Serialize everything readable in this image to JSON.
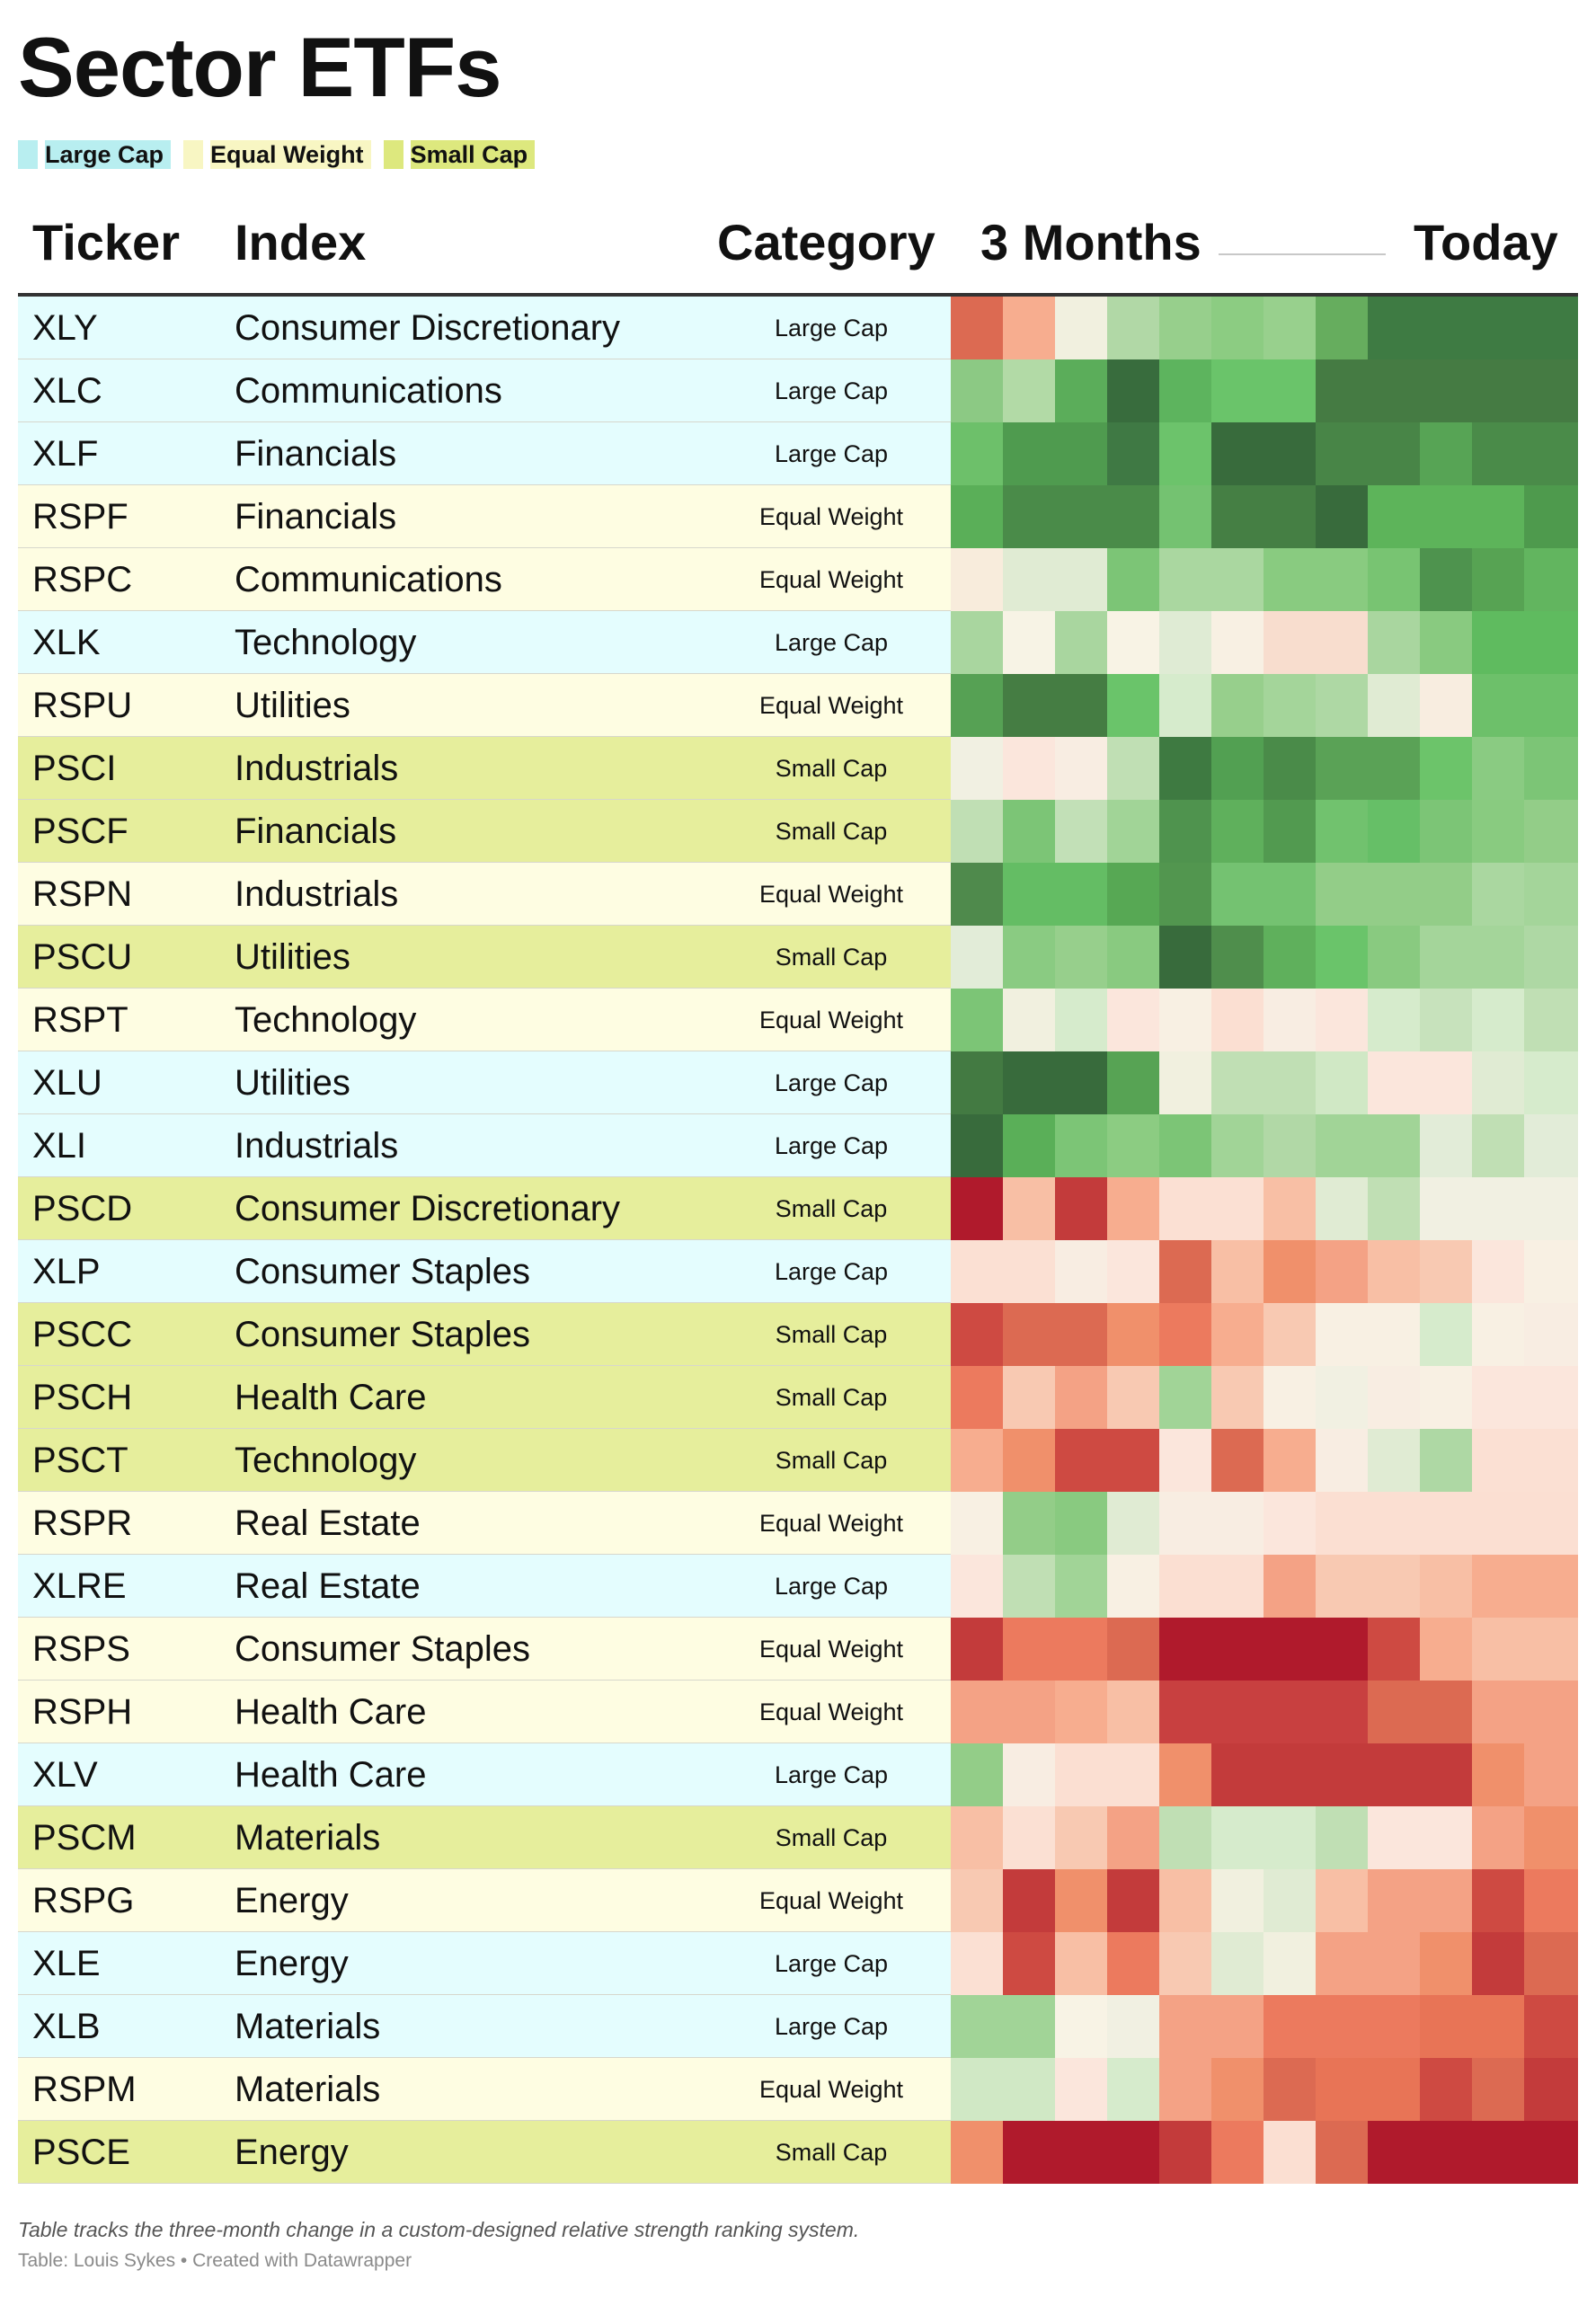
{
  "title": "Sector ETFs",
  "legend": [
    {
      "label": "Large Cap",
      "color": "#b8eef0"
    },
    {
      "label": "Equal Weight",
      "color": "#f8f6c3"
    },
    {
      "label": "Small Cap",
      "color": "#dde87e"
    }
  ],
  "headers": {
    "ticker": "Ticker",
    "index": "Index",
    "category": "Category",
    "period_start": "3 Months",
    "period_end": "Today"
  },
  "category_colors": {
    "Large Cap": "#e4fdfe",
    "Equal Weight": "#fefde2",
    "Small Cap": "#e6ee9c"
  },
  "note": "Table tracks the three-month change in a custom-designed relative strength ranking system.",
  "credit": "Table: Louis Sykes • Created with Datawrapper",
  "chart_data": {
    "type": "heatmap",
    "title": "Sector ETFs",
    "columns": [
      "Ticker",
      "Index",
      "Category",
      "3 Months",
      "Today"
    ],
    "color_scale": "red (weak) to green (strong)",
    "rows": [
      {
        "ticker": "XLY",
        "index": "Consumer Discretionary",
        "category": "Large Cap",
        "values": [
          "#dc6a52",
          "#f7ad8f",
          "#f1f0df",
          "#b1d8a6",
          "#97cf8c",
          "#8ccc82",
          "#98d08d",
          "#66ad5e",
          "#3e7b43",
          "#3e7b43",
          "#3e7b43",
          "#3e7b43"
        ]
      },
      {
        "ticker": "XLC",
        "index": "Communications",
        "category": "Large Cap",
        "values": [
          "#8cc984",
          "#b2daa6",
          "#5bad5a",
          "#386c3d",
          "#5db45e",
          "#6ac46a",
          "#6ac46a",
          "#457b43",
          "#457b43",
          "#457b43",
          "#457b43",
          "#457b43"
        ]
      },
      {
        "ticker": "XLF",
        "index": "Financials",
        "category": "Large Cap",
        "values": [
          "#6dc06a",
          "#4f9b4f",
          "#4f9b4f",
          "#3f7944",
          "#6cc36b",
          "#386b3c",
          "#386b3c",
          "#488547",
          "#488547",
          "#57a455",
          "#4a8b49",
          "#4a8b49"
        ]
      },
      {
        "ticker": "RSPF",
        "index": "Financials",
        "category": "Equal Weight",
        "values": [
          "#5aaf58",
          "#4a8b49",
          "#4a8b49",
          "#4a8b49",
          "#74c271",
          "#457f44",
          "#457f44",
          "#386b3c",
          "#5db45a",
          "#5db45a",
          "#5db45a",
          "#4e9a4d"
        ]
      },
      {
        "ticker": "RSPC",
        "index": "Communications",
        "category": "Equal Weight",
        "values": [
          "#f8ecdc",
          "#e0ebd3",
          "#e0ebd3",
          "#7cc576",
          "#aad7a0",
          "#aad7a0",
          "#89cb80",
          "#89cb80",
          "#78c472",
          "#4e934e",
          "#57a353",
          "#62b55f"
        ]
      },
      {
        "ticker": "XLK",
        "index": "Technology",
        "category": "Large Cap",
        "values": [
          "#a9d69f",
          "#f7f3e5",
          "#a9d69f",
          "#f8f3e5",
          "#dfebd4",
          "#f8f0e3",
          "#f8ddce",
          "#f8ddce",
          "#a9d69f",
          "#89ca80",
          "#5fbb5f",
          "#5fbb5f"
        ]
      },
      {
        "ticker": "RSPU",
        "index": "Utilities",
        "category": "Equal Weight",
        "values": [
          "#56a154",
          "#457d43",
          "#457d43",
          "#6ac46a",
          "#d6ebcc",
          "#97cf8c",
          "#a4d59a",
          "#aed8a4",
          "#e0ebd3",
          "#f8ede0",
          "#6dc06a",
          "#6dc06a"
        ]
      },
      {
        "ticker": "PSCI",
        "index": "Industrials",
        "category": "Small Cap",
        "values": [
          "#f1f0e2",
          "#fbe6dc",
          "#f8ede2",
          "#c0dfb4",
          "#3e7a41",
          "#52a052",
          "#4a8b49",
          "#5aa256",
          "#5aa256",
          "#6cc46a",
          "#8acb82",
          "#7cc576"
        ]
      },
      {
        "ticker": "PSCF",
        "index": "Financials",
        "category": "Small Cap",
        "values": [
          "#c0dfb4",
          "#7cc576",
          "#c2e0b7",
          "#a1d497",
          "#4f934e",
          "#5fb05c",
          "#529a50",
          "#71c26e",
          "#66bf67",
          "#7cc576",
          "#89cb80",
          "#93cd88"
        ]
      },
      {
        "ticker": "RSPN",
        "index": "Industrials",
        "category": "Equal Weight",
        "values": [
          "#4f8a4c",
          "#64bd64",
          "#64bd64",
          "#57a854",
          "#52964f",
          "#74c271",
          "#74c271",
          "#93cd88",
          "#93cd88",
          "#93cd88",
          "#aad7a0",
          "#a4d59a"
        ]
      },
      {
        "ticker": "PSCU",
        "index": "Utilities",
        "category": "Small Cap",
        "values": [
          "#e2ecd8",
          "#8acb82",
          "#97cf8c",
          "#89ca80",
          "#386b3c",
          "#4f8e4c",
          "#5fb05c",
          "#6ac46a",
          "#89ca80",
          "#a4d59a",
          "#a4d59a",
          "#aed8a4"
        ]
      },
      {
        "ticker": "RSPT",
        "index": "Technology",
        "category": "Equal Weight",
        "values": [
          "#7cc576",
          "#f1f0df",
          "#d6ebcc",
          "#fbe6dc",
          "#f8f0e3",
          "#fbdfd2",
          "#f8ede2",
          "#fbe6dc",
          "#d6ebcc",
          "#c7e2bc",
          "#d6ebcc",
          "#c0dfb4"
        ]
      },
      {
        "ticker": "XLU",
        "index": "Utilities",
        "category": "Large Cap",
        "values": [
          "#437a42",
          "#386b3c",
          "#386b3c",
          "#57a354",
          "#f1f0df",
          "#c0dfb4",
          "#c0dfb4",
          "#d0e8c5",
          "#fbe6dc",
          "#fbe6dc",
          "#e0ebd3",
          "#d6ebcc"
        ]
      },
      {
        "ticker": "XLI",
        "index": "Industrials",
        "category": "Large Cap",
        "values": [
          "#386b3c",
          "#5aaf58",
          "#7cc576",
          "#8ccc82",
          "#7cc576",
          "#a1d497",
          "#b1d8a6",
          "#a1d497",
          "#a1d497",
          "#e2ecd8",
          "#c0dfb4",
          "#e2ecd8"
        ]
      },
      {
        "ticker": "PSCD",
        "index": "Consumer Discretionary",
        "category": "Small Cap",
        "values": [
          "#b01a2c",
          "#f8bfa5",
          "#c33b3b",
          "#f7ad8f",
          "#fbe0d3",
          "#fbe0d3",
          "#f8bfa5",
          "#e0ebd3",
          "#c0dfb4",
          "#f1f0e2",
          "#f1f0e2",
          "#f1f0e2"
        ]
      },
      {
        "ticker": "XLP",
        "index": "Consumer Staples",
        "category": "Large Cap",
        "values": [
          "#fbe0d3",
          "#fbe0d3",
          "#f8ede2",
          "#fbe6dc",
          "#dc6a52",
          "#f8bfa5",
          "#f0906b",
          "#f4a285",
          "#f8bfa5",
          "#f8c9b2",
          "#fbe6dc",
          "#f8f0e3"
        ]
      },
      {
        "ticker": "PSCC",
        "index": "Consumer Staples",
        "category": "Small Cap",
        "values": [
          "#ce4a42",
          "#dc6a52",
          "#dc6a52",
          "#f0906b",
          "#ec7a5e",
          "#f7ad8f",
          "#f8c9b2",
          "#f8f0e3",
          "#f8f0e3",
          "#d6ebcc",
          "#f8f0e3",
          "#f8ede2"
        ]
      },
      {
        "ticker": "PSCH",
        "index": "Health Care",
        "category": "Small Cap",
        "values": [
          "#ec7a5e",
          "#f8c9b2",
          "#f4a285",
          "#f8c9b2",
          "#a1d497",
          "#f8c9b2",
          "#f8f0e3",
          "#f1f0e2",
          "#f8ede2",
          "#f8f0e3",
          "#fbe6dc",
          "#fbe6dc"
        ]
      },
      {
        "ticker": "PSCT",
        "index": "Technology",
        "category": "Small Cap",
        "values": [
          "#f7ad8f",
          "#f0906b",
          "#ce4a42",
          "#ce4a42",
          "#fbe6dc",
          "#dc6a52",
          "#f7ad8f",
          "#f8ede2",
          "#e0ebd3",
          "#aed8a4",
          "#fbe0d3",
          "#fbe0d3"
        ]
      },
      {
        "ticker": "RSPR",
        "index": "Real Estate",
        "category": "Equal Weight",
        "values": [
          "#f8f0e3",
          "#93cd88",
          "#89ca80",
          "#e0ebd3",
          "#f8ede2",
          "#f8ede2",
          "#fbe6dc",
          "#fbdfd2",
          "#fbdfd2",
          "#fbdfd2",
          "#fbdfd2",
          "#fbdfd2"
        ]
      },
      {
        "ticker": "XLRE",
        "index": "Real Estate",
        "category": "Large Cap",
        "values": [
          "#fbe6dc",
          "#c0dfb4",
          "#a1d497",
          "#f8f0e3",
          "#fbdfd2",
          "#fbdfd2",
          "#f4a285",
          "#f8c9b2",
          "#f8c9b2",
          "#f8bfa5",
          "#f7ad8f",
          "#f7ad8f"
        ]
      },
      {
        "ticker": "RSPS",
        "index": "Consumer Staples",
        "category": "Equal Weight",
        "values": [
          "#c33b3b",
          "#ec7a5e",
          "#ec7a5e",
          "#dc6a52",
          "#b01a2c",
          "#b01a2c",
          "#b01a2c",
          "#b01a2c",
          "#ce4a42",
          "#f7ad8f",
          "#f8bfa5",
          "#f8bfa5"
        ]
      },
      {
        "ticker": "RSPH",
        "index": "Health Care",
        "category": "Equal Weight",
        "values": [
          "#f4a285",
          "#f4a285",
          "#f7ad8f",
          "#f8bfa5",
          "#c84040",
          "#c84040",
          "#c84040",
          "#c84040",
          "#dc6a52",
          "#dc6a52",
          "#f4a285",
          "#f4a285"
        ]
      },
      {
        "ticker": "XLV",
        "index": "Health Care",
        "category": "Large Cap",
        "values": [
          "#93cd88",
          "#f8ede2",
          "#fbdfd2",
          "#fbdfd2",
          "#f0906b",
          "#c33b3b",
          "#c33b3b",
          "#c33b3b",
          "#c33b3b",
          "#c33b3b",
          "#f0906b",
          "#f4a285"
        ]
      },
      {
        "ticker": "PSCM",
        "index": "Materials",
        "category": "Small Cap",
        "values": [
          "#f8bfa5",
          "#fbe0d3",
          "#f8c9b2",
          "#f4a285",
          "#c0dfb4",
          "#d6ebcc",
          "#d6ebcc",
          "#c0dfb4",
          "#fbe6dc",
          "#fbe6dc",
          "#f4a285",
          "#f0906b"
        ]
      },
      {
        "ticker": "RSPG",
        "index": "Energy",
        "category": "Equal Weight",
        "values": [
          "#f8c9b2",
          "#c33b3b",
          "#f0906b",
          "#c33b3b",
          "#f8bfa5",
          "#f1f0df",
          "#e0ebd3",
          "#f8bfa5",
          "#f4a285",
          "#f4a285",
          "#ce4a42",
          "#ec7a5e"
        ]
      },
      {
        "ticker": "XLE",
        "index": "Energy",
        "category": "Large Cap",
        "values": [
          "#fbe0d3",
          "#ce4a42",
          "#f8bfa5",
          "#ec7a5e",
          "#f8c9b2",
          "#e0ebd3",
          "#f1f0df",
          "#f4a285",
          "#f4a285",
          "#f0906b",
          "#c33b3b",
          "#dc6a52"
        ]
      },
      {
        "ticker": "XLB",
        "index": "Materials",
        "category": "Large Cap",
        "values": [
          "#a1d497",
          "#a1d497",
          "#f8f3e5",
          "#f1f0e2",
          "#f4a285",
          "#f4a285",
          "#ec7a5e",
          "#ec7a5e",
          "#ec7a5e",
          "#e87456",
          "#e87456",
          "#ce4a42"
        ]
      },
      {
        "ticker": "RSPM",
        "index": "Materials",
        "category": "Equal Weight",
        "values": [
          "#d0e8c5",
          "#d0e8c5",
          "#fbe6dc",
          "#d6ebcc",
          "#f4a285",
          "#f0906b",
          "#dc6a52",
          "#e87456",
          "#e87456",
          "#ce4a42",
          "#dc6a52",
          "#c33b3b"
        ]
      },
      {
        "ticker": "PSCE",
        "index": "Energy",
        "category": "Small Cap",
        "values": [
          "#f0906b",
          "#b01a2c",
          "#b01a2c",
          "#b01a2c",
          "#c33b3b",
          "#ec7a5e",
          "#fbdfd2",
          "#dc6a52",
          "#b01a2c",
          "#b01a2c",
          "#b01a2c",
          "#b01a2c"
        ]
      }
    ]
  }
}
